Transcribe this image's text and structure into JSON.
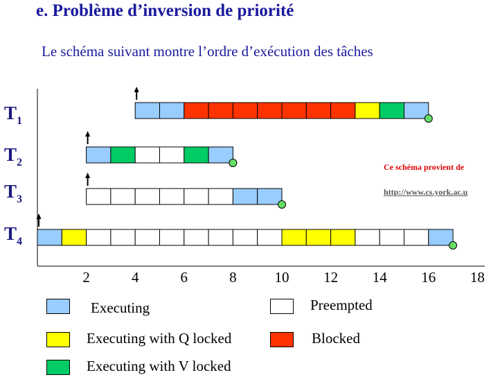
{
  "header": {
    "title": "e. Problème d’inversion de priorité",
    "subtitle": "Le schéma suivant montre l’ordre d’exécution des tâches"
  },
  "colors": {
    "executing": "#99ccff",
    "preempted": "#ffffff",
    "q_locked": "#ffff00",
    "blocked": "#ff3300",
    "v_locked": "#00cc66",
    "finish": "#66dd66"
  },
  "chart_data": {
    "type": "gantt",
    "x_ticks": [
      "2",
      "4",
      "6",
      "8",
      "10",
      "12",
      "14",
      "16",
      "18"
    ],
    "tasks": [
      {
        "label": "T",
        "sub": "1",
        "arrival": 4,
        "finish": 16,
        "slots": [
          "E",
          "E",
          "B",
          "B",
          "B",
          "B",
          "B",
          "B",
          "B",
          "Q",
          "V",
          "E"
        ]
      },
      {
        "label": "T",
        "sub": "2",
        "arrival": 2,
        "finish": 8,
        "slots": [
          "E",
          "V",
          "P",
          "P",
          "V",
          "E"
        ]
      },
      {
        "label": "T",
        "sub": "3",
        "arrival": 2,
        "finish": 10,
        "slots": [
          "P",
          "P",
          "P",
          "P",
          "P",
          "P",
          "E",
          "E"
        ]
      },
      {
        "label": "T",
        "sub": "4",
        "arrival": 0,
        "finish": 17,
        "slots": [
          "E",
          "Q",
          "P",
          "P",
          "P",
          "P",
          "P",
          "P",
          "P",
          "P",
          "Q",
          "Q",
          "Q",
          "P",
          "P",
          "P",
          "E"
        ]
      }
    ]
  },
  "legend": {
    "executing": "Executing",
    "preempted": "Preempted",
    "q_locked": "Executing with Q locked",
    "blocked": "Blocked",
    "v_locked": "Executing with V locked"
  },
  "source": {
    "note": "Ce schéma provient de",
    "url": "http://www.cs.york.ac.u"
  }
}
